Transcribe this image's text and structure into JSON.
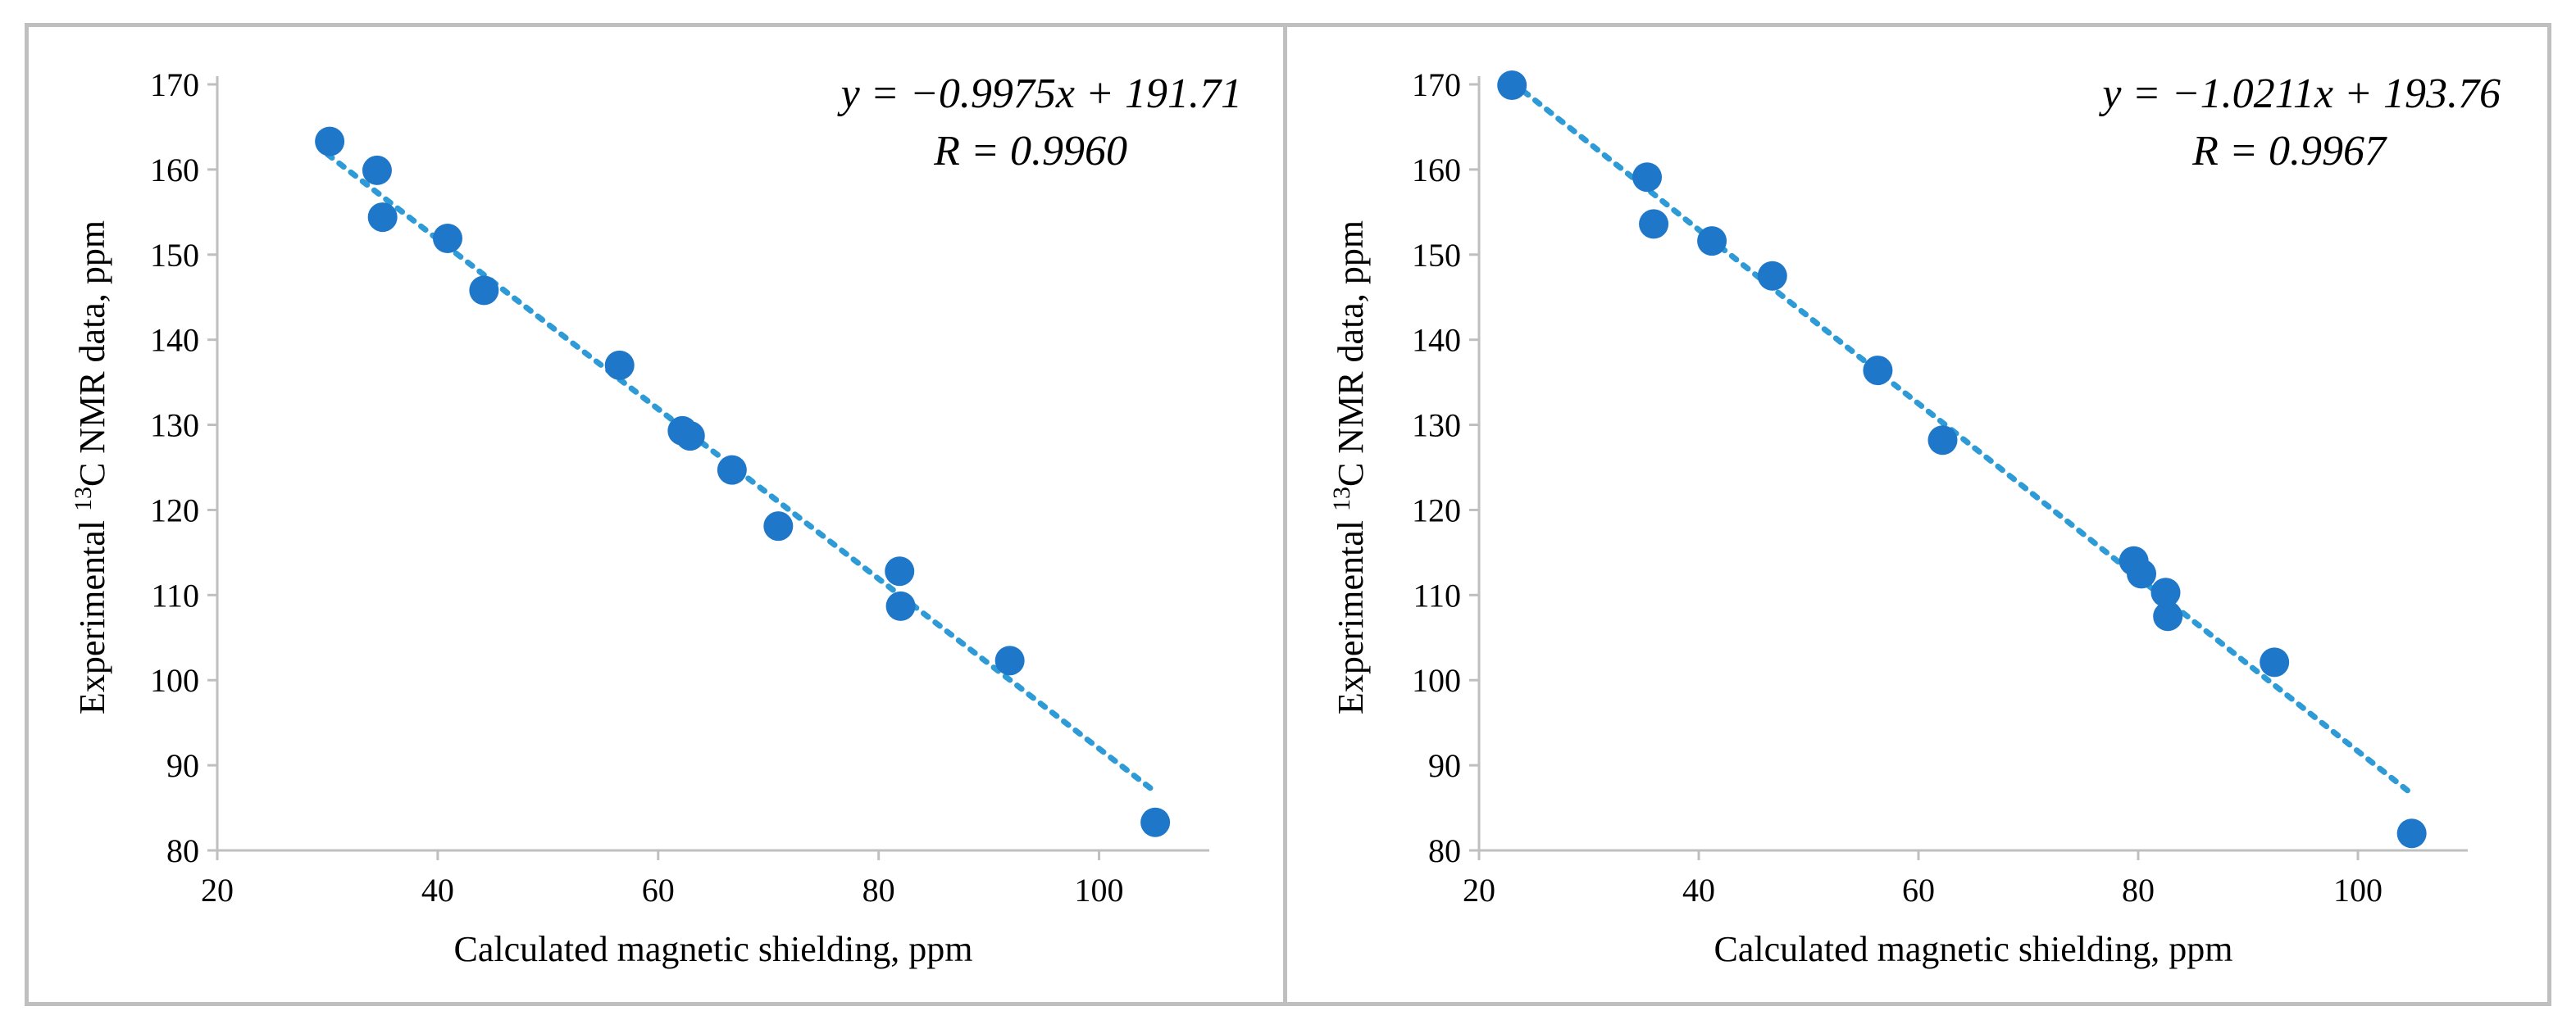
{
  "chart_data": [
    {
      "type": "scatter",
      "xlabel": "Calculated magnetic shielding, ppm",
      "ylabel_prefix": "Experimental ",
      "ylabel_sup": "13",
      "ylabel_suffix": "C NMR data, ppm",
      "xlim": [
        20,
        110
      ],
      "ylim": [
        80,
        170
      ],
      "xticks": [
        20,
        40,
        60,
        80,
        100
      ],
      "yticks": [
        80,
        90,
        100,
        110,
        120,
        130,
        140,
        150,
        160,
        170
      ],
      "equation": "y = −0.9975x + 191.71",
      "r_text": "R = 0.9960",
      "trendline": {
        "slope": -0.9975,
        "intercept": 191.71,
        "x_range": [
          30,
          105
        ]
      },
      "marker_color": "#1f77c9",
      "trend_color": "#2e9bd6",
      "points": [
        {
          "x": 30.2,
          "y": 163.3
        },
        {
          "x": 34.5,
          "y": 159.9
        },
        {
          "x": 35.0,
          "y": 154.4
        },
        {
          "x": 40.9,
          "y": 151.9
        },
        {
          "x": 44.2,
          "y": 145.8
        },
        {
          "x": 56.5,
          "y": 137.0
        },
        {
          "x": 62.2,
          "y": 129.3
        },
        {
          "x": 62.9,
          "y": 128.7
        },
        {
          "x": 66.7,
          "y": 124.7
        },
        {
          "x": 70.9,
          "y": 118.1
        },
        {
          "x": 81.9,
          "y": 112.8
        },
        {
          "x": 82.0,
          "y": 108.7
        },
        {
          "x": 91.9,
          "y": 102.3
        },
        {
          "x": 105.1,
          "y": 83.3
        }
      ]
    },
    {
      "type": "scatter",
      "xlabel": "Calculated magnetic shielding, ppm",
      "ylabel_prefix": "Experimental ",
      "ylabel_sup": "13",
      "ylabel_suffix": "C NMR data, ppm",
      "xlim": [
        20,
        110
      ],
      "ylim": [
        80,
        170
      ],
      "xticks": [
        20,
        40,
        60,
        80,
        100
      ],
      "yticks": [
        80,
        90,
        100,
        110,
        120,
        130,
        140,
        150,
        160,
        170
      ],
      "equation": "y = −1.0211x + 193.76",
      "r_text": "R = 0.9967",
      "trendline": {
        "slope": -1.0211,
        "intercept": 193.76,
        "x_range": [
          23,
          105
        ]
      },
      "marker_color": "#1f77c9",
      "trend_color": "#2e9bd6",
      "points": [
        {
          "x": 23.0,
          "y": 169.9
        },
        {
          "x": 35.3,
          "y": 159.1
        },
        {
          "x": 35.9,
          "y": 153.6
        },
        {
          "x": 41.2,
          "y": 151.6
        },
        {
          "x": 46.7,
          "y": 147.5
        },
        {
          "x": 56.3,
          "y": 136.4
        },
        {
          "x": 62.2,
          "y": 128.2
        },
        {
          "x": 79.6,
          "y": 114.0
        },
        {
          "x": 80.3,
          "y": 112.5
        },
        {
          "x": 82.5,
          "y": 110.3
        },
        {
          "x": 82.7,
          "y": 107.5
        },
        {
          "x": 92.4,
          "y": 102.1
        },
        {
          "x": 104.9,
          "y": 82.0
        }
      ]
    }
  ]
}
